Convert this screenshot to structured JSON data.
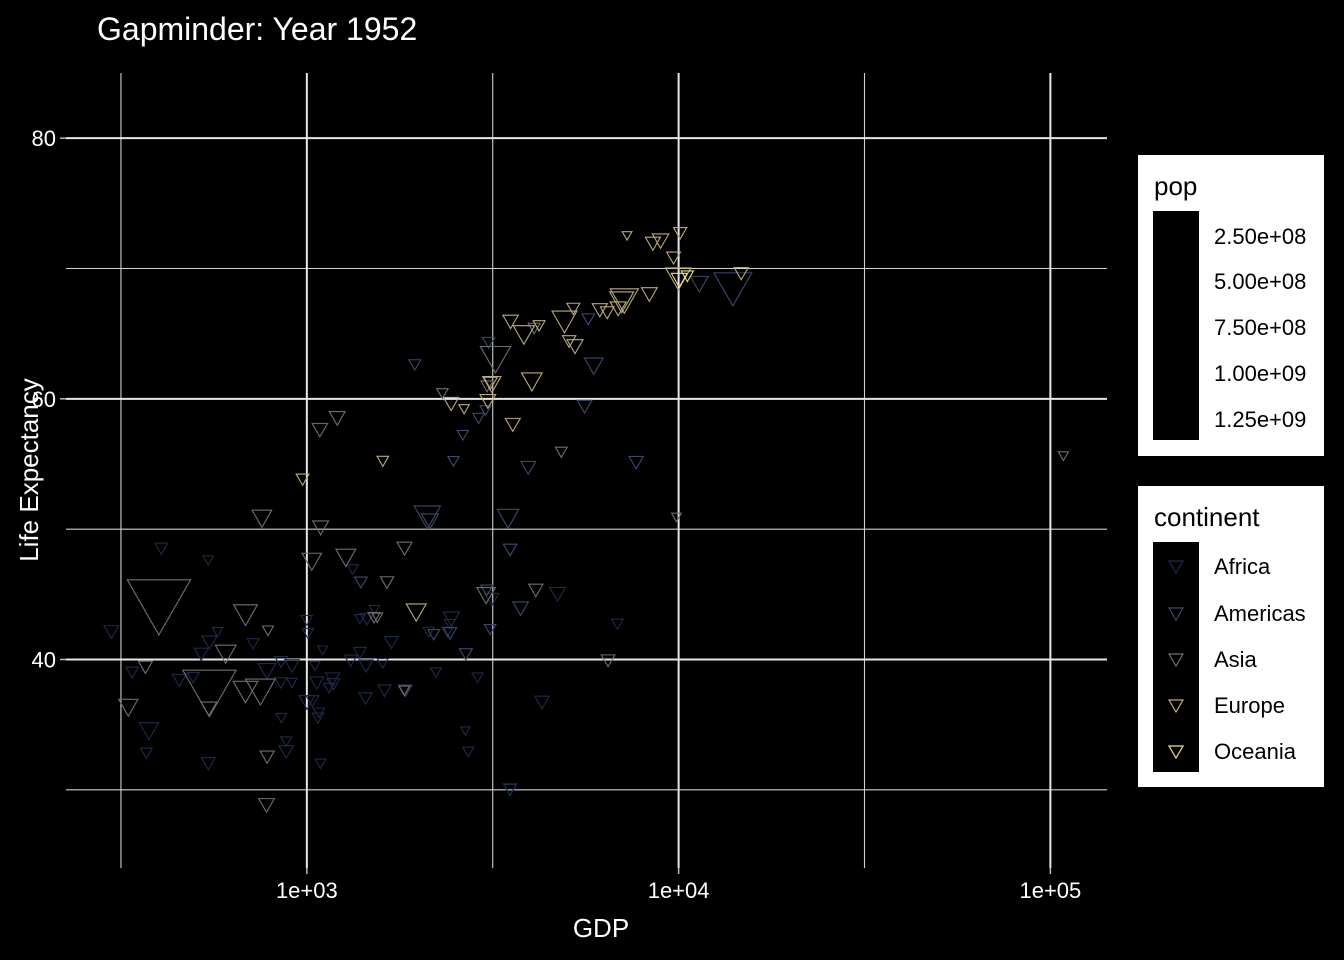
{
  "chart_data": {
    "type": "scatter",
    "title": "Gapminder: Year 1952",
    "xlabel": "GDP",
    "ylabel": "Life Expectancy",
    "x_scale": "log10",
    "xlim": [
      225,
      142000
    ],
    "ylim": [
      24,
      85
    ],
    "x_ticks": [
      {
        "value": 1000,
        "label": "1e+03"
      },
      {
        "value": 10000,
        "label": "1e+04"
      },
      {
        "value": 100000,
        "label": "1e+05"
      }
    ],
    "y_ticks": [
      {
        "value": 40,
        "label": "40"
      },
      {
        "value": 60,
        "label": "60"
      },
      {
        "value": 80,
        "label": "80"
      }
    ],
    "grid": true,
    "marker": "down-triangle (open)",
    "legends": {
      "pop": {
        "title": "pop",
        "entries": [
          {
            "label": "2.50e+08",
            "value": 250000000
          },
          {
            "label": "5.00e+08",
            "value": 500000000
          },
          {
            "label": "7.50e+08",
            "value": 750000000
          },
          {
            "label": "1.00e+09",
            "value": 1000000000
          },
          {
            "label": "1.25e+09",
            "value": 1250000000
          }
        ]
      },
      "continent": {
        "title": "continent",
        "entries": [
          {
            "label": "Africa",
            "color": "#1f2a4d"
          },
          {
            "label": "Americas",
            "color": "#3c4a6b"
          },
          {
            "label": "Asia",
            "color": "#6f6f6f"
          },
          {
            "label": "Europe",
            "color": "#b9ab78"
          },
          {
            "label": "Oceania",
            "color": "#f2e08a"
          }
        ]
      }
    },
    "series": [
      {
        "name": "Africa",
        "color": "#1f2a4d",
        "points": [
          [
            2449,
            43.1,
            9.3
          ],
          [
            3521,
            30.0,
            4.2
          ],
          [
            851,
            38.2,
            1.7
          ],
          [
            543,
            47.6,
            0.4
          ],
          [
            543,
            32.0,
            4.5
          ],
          [
            339,
            39.0,
            2.4
          ],
          [
            1173,
            38.5,
            5.0
          ],
          [
            1071,
            35.5,
            1.3
          ],
          [
            1179,
            38.1,
            2.7
          ],
          [
            1103,
            40.7,
            0.2
          ],
          [
            781,
            39.1,
            14.1
          ],
          [
            2126,
            42.1,
            0.9
          ],
          [
            1389,
            40.5,
            2.9
          ],
          [
            2670,
            34.5,
            0.1
          ],
          [
            376,
            34.5,
            20.9
          ],
          [
            1389,
            43.1,
            0.4
          ],
          [
            912,
            39.5,
            5.6
          ],
          [
            1035,
            36.8,
            2.5
          ],
          [
            854,
            35.5,
            0.6
          ],
          [
            911,
            38.2,
            0.5
          ],
          [
            298,
            42.1,
            6.0
          ],
          [
            575,
            42.1,
            0.4
          ],
          [
            2387,
            42.1,
            0.9
          ],
          [
            1443,
            39.5,
            4.8
          ],
          [
            370,
            32.8,
            1.5
          ],
          [
            2424,
            42.7,
            0.7
          ],
          [
            2878,
            38.6,
            0.7
          ],
          [
            1619,
            37.6,
            3.5
          ],
          [
            1001,
            36.7,
            9.1
          ],
          [
            1051,
            39.5,
            0.4
          ],
          [
            454,
            38.4,
            4.5
          ],
          [
            547,
            41.3,
            6.5
          ],
          [
            1000,
            43.0,
            1.0
          ],
          [
            880,
            33.7,
            0.6
          ],
          [
            1077,
            35.9,
            1.0
          ],
          [
            2718,
            32.9,
            0.8
          ],
          [
            3144,
            44.6,
            4.9
          ],
          [
            1438,
            37.0,
            3.4
          ],
          [
            1312,
            39.9,
            3.1
          ],
          [
            1328,
            46.9,
            0.9
          ],
          [
            1600,
            39.7,
            0.8
          ],
          [
            3521,
            30.0,
            2.0
          ],
          [
            1063,
            38.2,
            4.5
          ],
          [
            4725,
            45.0,
            8.7
          ],
          [
            495,
            38.6,
            1.9
          ],
          [
            717,
            41.2,
            1.4
          ],
          [
            6841,
            42.7,
            1.3
          ],
          [
            1007,
            42.0,
            1.3
          ],
          [
            1519,
            43.8,
            0.3
          ],
          [
            1450,
            43.1,
            3.6
          ],
          [
            880,
            32.9,
            5.8
          ],
          [
            1147,
            37.8,
            0.6
          ],
          [
            853,
            39.8,
            2.5
          ],
          [
            1088,
            32.0,
            0.6
          ],
          [
            4293,
            36.7,
            5.5
          ],
          [
            2224,
            39.0,
            0.7
          ],
          [
            406,
            48.5,
            3.1
          ],
          [
            1687,
            41.3,
            4.4
          ],
          [
            520,
            40.4,
            4.7
          ]
        ]
      },
      {
        "name": "Americas",
        "color": "#3c4a6b",
        "points": [
          [
            5911,
            62.5,
            17.9
          ],
          [
            2677,
            40.4,
            2.9
          ],
          [
            2109,
            50.9,
            56.6
          ],
          [
            11367,
            68.8,
            14.8
          ],
          [
            3940,
            54.7,
            6.4
          ],
          [
            2144,
            50.6,
            12.4
          ],
          [
            2627,
            57.2,
            0.9
          ],
          [
            5587,
            59.4,
            6.0
          ],
          [
            1398,
            45.9,
            2.5
          ],
          [
            3522,
            48.4,
            3.5
          ],
          [
            3048,
            45.3,
            2.0
          ],
          [
            2428,
            42.0,
            3.1
          ],
          [
            1840,
            37.6,
            3.2
          ],
          [
            2195,
            41.9,
            1.5
          ],
          [
            2898,
            58.5,
            1.4
          ],
          [
            3478,
            50.8,
            30.1
          ],
          [
            3112,
            42.3,
            1.2
          ],
          [
            2480,
            55.2,
            0.9
          ],
          [
            1952,
            62.6,
            1.6
          ],
          [
            3759,
            43.9,
            8.0
          ],
          [
            3082,
            64.3,
            2.2
          ],
          [
            3024,
            59.1,
            0.7
          ],
          [
            13990,
            68.4,
            157.6
          ],
          [
            5717,
            66.1,
            2.3
          ],
          [
            7690,
            55.1,
            5.4
          ]
        ]
      },
      {
        "name": "Asia",
        "color": "#6f6f6f",
        "points": [
          [
            779,
            28.8,
            8.4
          ],
          [
            9867,
            50.9,
            0.1
          ],
          [
            684,
            37.5,
            46.9
          ],
          [
            368,
            39.4,
            4.7
          ],
          [
            400,
            44.0,
            556.3
          ],
          [
            3054,
            60.96,
            2.1
          ],
          [
            547,
            37.4,
            372.0
          ],
          [
            750,
            37.5,
            82.1
          ],
          [
            3035,
            44.9,
            17.3
          ],
          [
            4130,
            45.3,
            5.4
          ],
          [
            4087,
            65.4,
            1.6
          ],
          [
            3217,
            63.0,
            86.5
          ],
          [
            1547,
            43.2,
            0.6
          ],
          [
            1089,
            50.1,
            8.9
          ],
          [
            1031,
            47.5,
            20.9
          ],
          [
            108382,
            55.6,
            0.2
          ],
          [
            4835,
            55.9,
            1.4
          ],
          [
            1831,
            48.5,
            6.7
          ],
          [
            786,
            42.2,
            0.8
          ],
          [
            331,
            36.3,
            20.1
          ],
          [
            545,
            36.2,
            9.2
          ],
          [
            1828,
            37.6,
            0.5
          ],
          [
            684,
            43.4,
            41.3
          ],
          [
            1273,
            47.8,
            22.4
          ],
          [
            6460,
            39.9,
            4.0
          ],
          [
            2315,
            60.4,
            1.1
          ],
          [
            1084,
            57.6,
            7.9
          ],
          [
            1643,
            45.9,
            3.7
          ],
          [
            1207,
            58.5,
            8.6
          ],
          [
            757,
            50.8,
            21.3
          ],
          [
            605,
            40.4,
            26.2
          ],
          [
            1516,
            43.2,
            1.7
          ],
          [
            782,
            32.5,
            4.96
          ]
        ]
      },
      {
        "name": "Europe",
        "color": "#b9ab78",
        "points": [
          [
            1601,
            55.2,
            1.3
          ],
          [
            6137,
            66.8,
            6.9
          ],
          [
            8343,
            68.0,
            8.7
          ],
          [
            974,
            53.8,
            2.8
          ],
          [
            2444,
            59.6,
            7.3
          ],
          [
            3119,
            61.2,
            3.9
          ],
          [
            6876,
            66.9,
            9.1
          ],
          [
            9692,
            70.8,
            4.3
          ],
          [
            6425,
            66.6,
            4.1
          ],
          [
            7030,
            67.4,
            42.5
          ],
          [
            7144,
            67.5,
            69.1
          ],
          [
            3531,
            65.9,
            7.7
          ],
          [
            5264,
            64.0,
            9.5
          ],
          [
            7268,
            72.5,
            0.1
          ],
          [
            5211,
            66.9,
            3.0
          ],
          [
            4931,
            65.9,
            47.7
          ],
          [
            2648,
            59.2,
            0.4
          ],
          [
            8942,
            72.1,
            10.4
          ],
          [
            10095,
            72.7,
            3.3
          ],
          [
            4029,
            61.3,
            25.7
          ],
          [
            3068,
            59.8,
            8.5
          ],
          [
            3145,
            61.1,
            16.6
          ],
          [
            3581,
            58.0,
            6.7
          ],
          [
            5074,
            64.4,
            3.6
          ],
          [
            4215,
            65.6,
            1.5
          ],
          [
            3835,
            64.9,
            28.6
          ],
          [
            8528,
            71.9,
            7.1
          ],
          [
            14734,
            69.6,
            4.8
          ],
          [
            1969,
            43.6,
            22.2
          ],
          [
            9980,
            69.2,
            50.4
          ]
        ]
      },
      {
        "name": "Oceania",
        "color": "#f2e08a",
        "points": [
          [
            10040,
            69.1,
            8.7
          ],
          [
            10557,
            69.4,
            1.99
          ]
        ]
      }
    ]
  }
}
